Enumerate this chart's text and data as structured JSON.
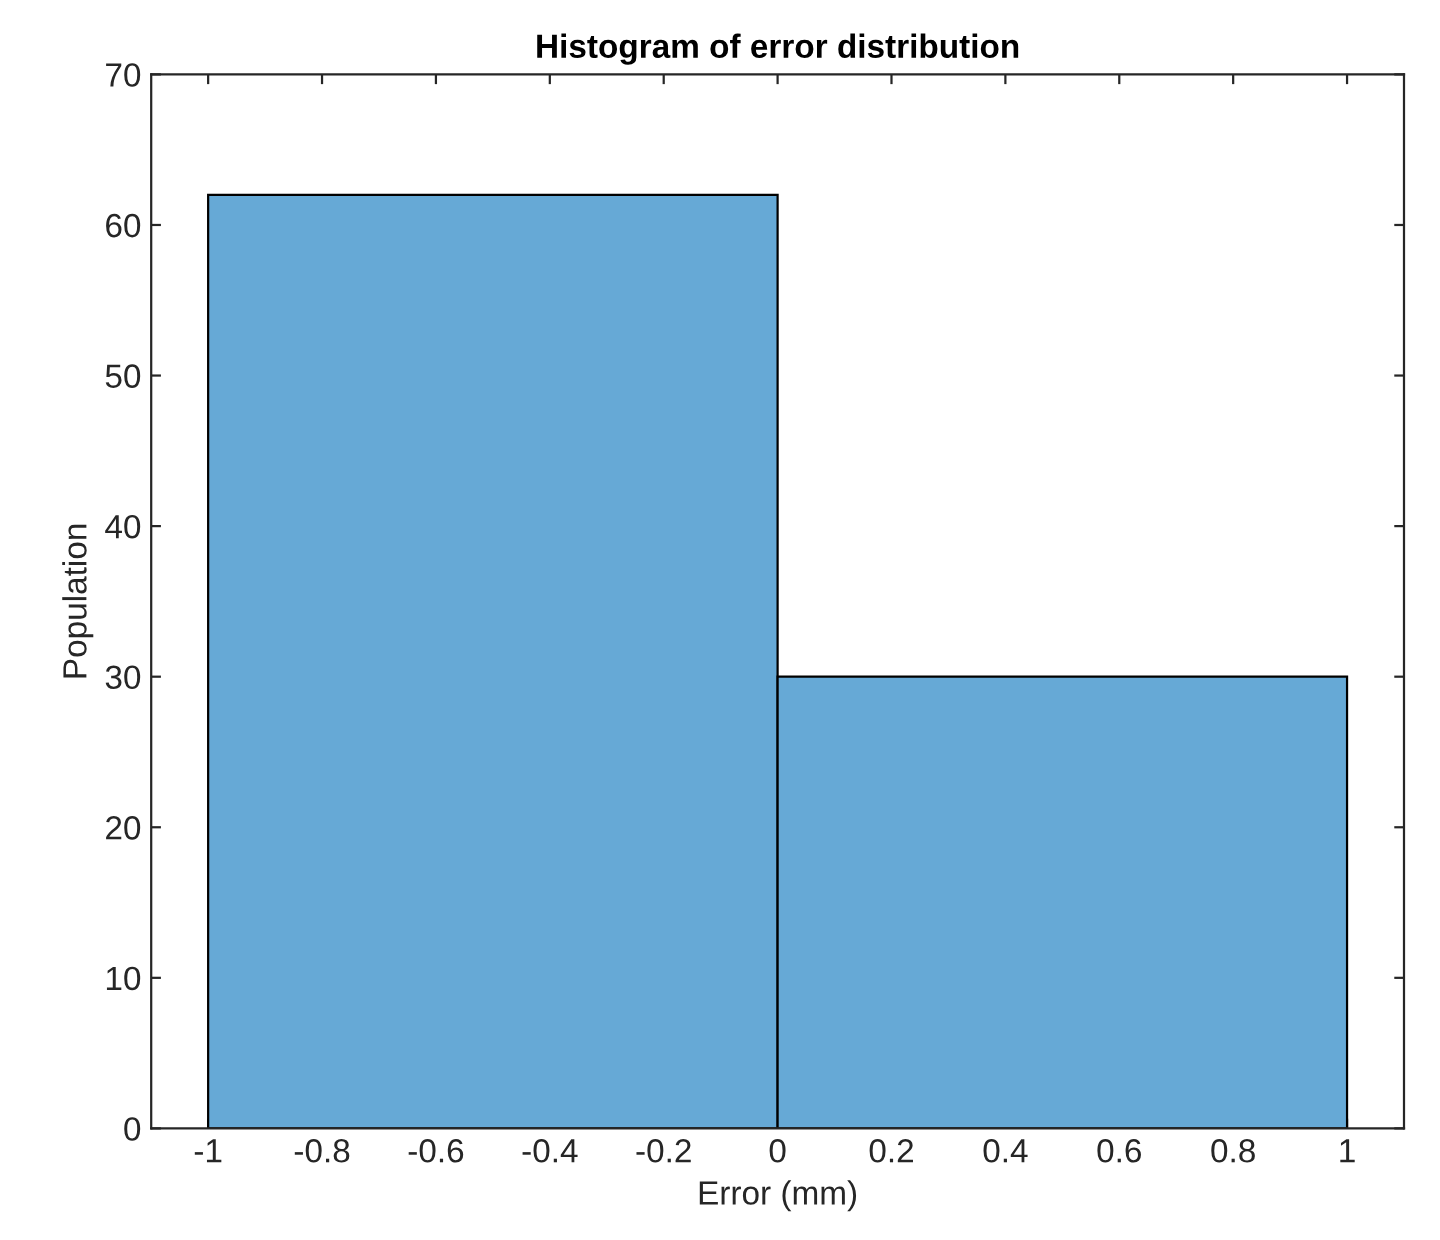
{
  "chart_data": {
    "type": "histogram",
    "title": "Histogram of error distribution",
    "xlabel": "Error (mm)",
    "ylabel": "Population",
    "bins": [
      -1,
      0,
      1
    ],
    "values": [
      62,
      30
    ],
    "color": "#66a9d6",
    "xlim": [
      -1.1,
      1.1
    ],
    "xticks": [
      -1,
      -0.8,
      -0.6,
      -0.4,
      -0.2,
      0,
      0.2,
      0.4,
      0.6,
      0.8,
      1
    ],
    "ylim": [
      0,
      70
    ],
    "yticks": [
      0,
      10,
      20,
      30,
      40,
      50,
      60,
      70
    ],
    "grid": false
  }
}
